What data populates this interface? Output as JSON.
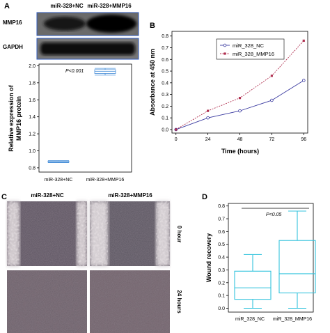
{
  "panels": {
    "a": {
      "label": "A",
      "blot": {
        "col_headers": [
          "miR-328+NC",
          "miR-328+MMP16"
        ],
        "row_labels": [
          "MMP16",
          "GAPDH"
        ]
      },
      "chart_data": {
        "type": "box",
        "categories": [
          "miR-328+NC",
          "miR-328+MMP16"
        ],
        "boxes": [
          {
            "min": 0.86,
            "q1": 0.865,
            "median": 0.87,
            "q3": 0.88,
            "max": 0.885
          },
          {
            "min": 1.89,
            "q1": 1.91,
            "median": 1.935,
            "q3": 1.955,
            "max": 1.97
          }
        ],
        "ylabel": "Relative expression of MMP16 protein",
        "ylim": [
          0.75,
          2.02
        ],
        "yticks": [
          0.8,
          1.0,
          1.2,
          1.4,
          1.6,
          1.8,
          2.0
        ],
        "annotation": "P<0.001",
        "color": "#4a90d9"
      }
    },
    "b": {
      "label": "B",
      "chart_data": {
        "type": "line",
        "x": [
          0,
          24,
          48,
          72,
          96
        ],
        "series": [
          {
            "name": "miR_328_NC",
            "values": [
              0.0,
              0.1,
              0.16,
              0.25,
              0.42
            ],
            "color": "#3a3aa0",
            "marker": "circle"
          },
          {
            "name": "miR_328_MMP16",
            "values": [
              0.0,
              0.16,
              0.27,
              0.46,
              0.76
            ],
            "color": "#b03050",
            "marker": "square"
          }
        ],
        "xlabel": "Time (hours)",
        "ylabel": "Absorbance at 450 nm",
        "xticks": [
          0,
          24,
          48,
          72,
          96
        ],
        "yticks": [
          0.0,
          0.1,
          0.2,
          0.3,
          0.4,
          0.5,
          0.6,
          0.7,
          0.8
        ],
        "xlim": [
          -3,
          99
        ],
        "ylim": [
          -0.03,
          0.84
        ],
        "legend": "top-left"
      }
    },
    "c": {
      "label": "C",
      "col_headers": [
        "miR-328+NC",
        "miR-328+MMP16"
      ],
      "row_labels": [
        "0 hour",
        "24 hours"
      ]
    },
    "d": {
      "label": "D",
      "chart_data": {
        "type": "box",
        "categories": [
          "miR_328_NC",
          "miR_328_MMP16"
        ],
        "boxes": [
          {
            "min": 0.0,
            "q1": 0.07,
            "median": 0.16,
            "q3": 0.29,
            "max": 0.42
          },
          {
            "min": 0.0,
            "q1": 0.12,
            "median": 0.27,
            "q3": 0.53,
            "max": 0.76
          }
        ],
        "ylabel": "Wound recovery",
        "ylim": [
          -0.03,
          0.82
        ],
        "yticks": [
          0.0,
          0.1,
          0.2,
          0.3,
          0.4,
          0.5,
          0.6,
          0.7,
          0.8
        ],
        "annotation": "P<0.05",
        "color": "#33c3dd"
      }
    }
  }
}
